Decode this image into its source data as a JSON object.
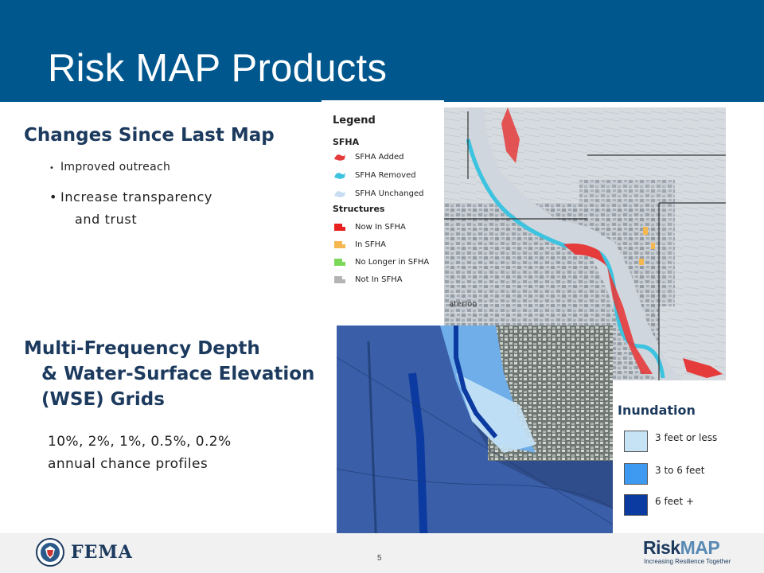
{
  "slide": {
    "title": "Risk MAP Products",
    "page_number": "5"
  },
  "section1": {
    "heading": "Changes Since Last Map",
    "bullets": [
      "Improved outreach",
      "Increase transparency",
      "and trust"
    ]
  },
  "section2": {
    "heading_lines": [
      "Multi-Frequency Depth",
      "& Water-Surface Elevation",
      "(WSE) Grids"
    ],
    "body_lines": [
      "10%, 2%, 1%, 0.5%, 0.2%",
      "annual chance profiles"
    ]
  },
  "legend": {
    "title": "Legend",
    "sfha_heading": "SFHA",
    "sfha_items": [
      "SFHA Added",
      "SFHA Removed",
      "SFHA Unchanged"
    ],
    "structures_heading": "Structures",
    "structure_items": [
      "Now In SFHA",
      "In SFHA",
      "No Longer in SFHA",
      "Not In SFHA"
    ],
    "colors": {
      "sfha_added": "#e53b3b",
      "sfha_removed": "#3cc3e0",
      "sfha_unchanged": "#c8dcf2",
      "now_in": "#e82020",
      "in": "#f5b850",
      "no_longer": "#7bd858",
      "not_in": "#b4b4b4"
    },
    "map_label": "aterloo"
  },
  "inundation": {
    "title": "Inundation",
    "items": [
      {
        "label": "3 feet or less",
        "color": "#c6e3f6"
      },
      {
        "label": "3 to 6 feet",
        "color": "#3d9af0"
      },
      {
        "label": "6 feet +",
        "color": "#0b3aa0"
      }
    ]
  },
  "footer": {
    "fema": "FEMA",
    "riskmap_risk": "Risk",
    "riskmap_map": "MAP",
    "tagline": "Increasing Resilience Together"
  },
  "icons": [
    "dhs-seal-icon",
    "riskmap-logo"
  ]
}
